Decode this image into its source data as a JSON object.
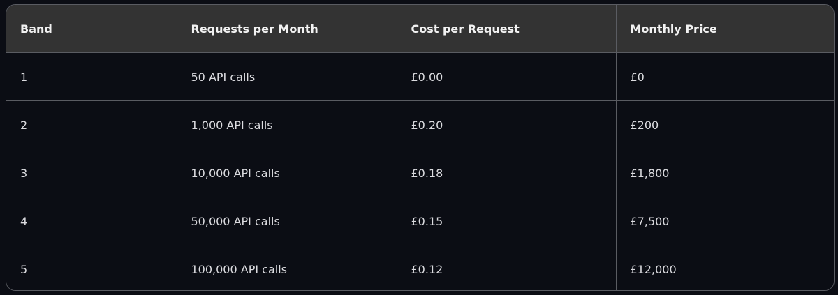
{
  "table": {
    "headers": [
      "Band",
      "Requests per Month",
      "Cost per Request",
      "Monthly Price"
    ],
    "rows": [
      [
        "1",
        "50 API calls",
        "£0.00",
        "£0"
      ],
      [
        "2",
        "1,000 API calls",
        "£0.20",
        "£200"
      ],
      [
        "3",
        "10,000 API calls",
        "£0.18",
        "£1,800"
      ],
      [
        "4",
        "50,000 API calls",
        "£0.15",
        "£7,500"
      ],
      [
        "5",
        "100,000 API calls",
        "£0.12",
        "£12,000"
      ]
    ]
  },
  "colors": {
    "background": "#0b0d14",
    "header_background": "#333333",
    "border": "#5a5c62",
    "text": "#e8e8ea"
  }
}
